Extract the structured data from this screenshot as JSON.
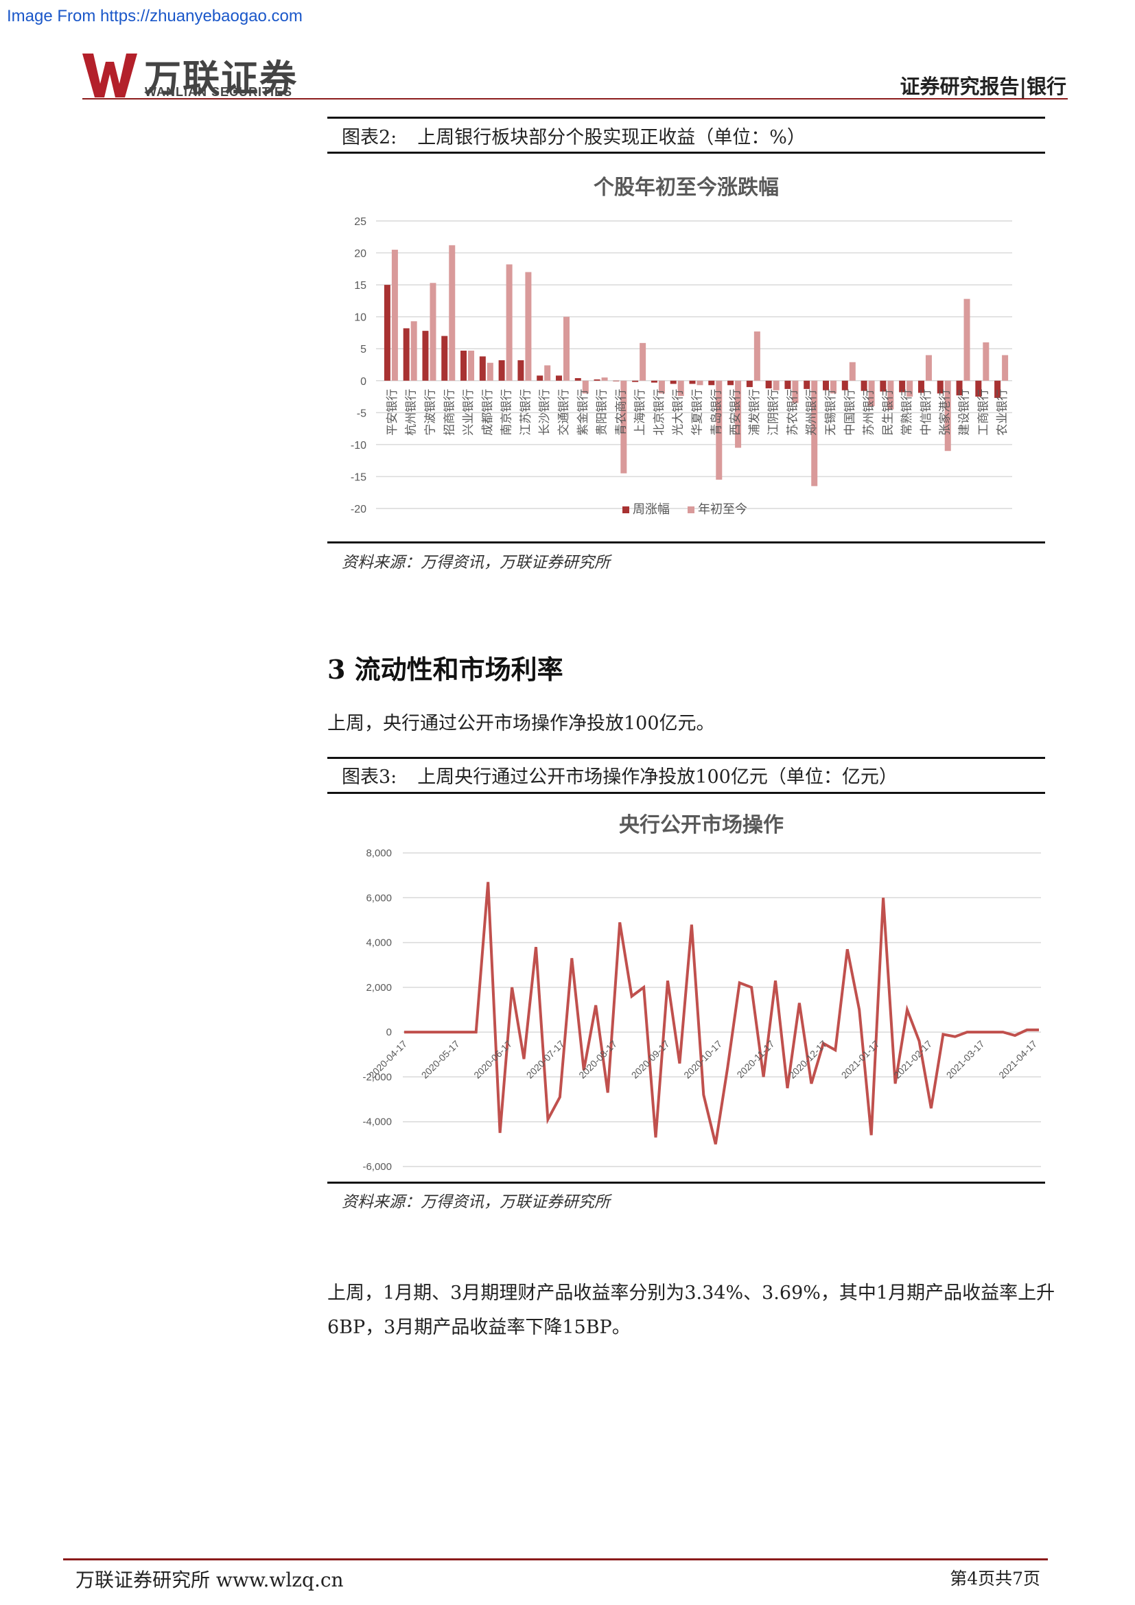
{
  "watermark": "Image From https://zhuanyebaogao.com",
  "header": {
    "logo_cn": "万联证券",
    "logo_en": "WANLIAN SECURITIES",
    "report_type": "证券研究报告|银行"
  },
  "figure2": {
    "num": "图表2:",
    "caption": "上周银行板块部分个股实现正收益（单位：%）",
    "source": "资料来源：万得资讯，万联证券研究所"
  },
  "figure3": {
    "num": "图表3:",
    "caption": "上周央行通过公开市场操作净投放100亿元（单位：亿元）",
    "source": "资料来源：万得资讯，万联证券研究所"
  },
  "section": {
    "title": "3 流动性和市场利率",
    "para1": "上周，央行通过公开市场操作净投放100亿元。",
    "para2": "上周，1月期、3月期理财产品收益率分别为3.34%、3.69%，其中1月期产品收益率上升6BP，3月期产品收益率下降15BP。"
  },
  "footer": {
    "left": "万联证券研究所 www.wlzq.cn",
    "right": "第4页共7页"
  },
  "colors": {
    "dark_red": "#a83232",
    "light_red": "#d99a9a",
    "line_red": "#c0504d",
    "accent": "#8b1a1a"
  },
  "chart_data": [
    {
      "type": "bar",
      "title": "个股年初至今涨跌幅",
      "ylim": [
        -20,
        25
      ],
      "yticks": [
        "25",
        "20",
        "15",
        "10",
        "5",
        "0",
        "-5",
        "-10",
        "-15",
        "-20"
      ],
      "grid": true,
      "legend_position": "bottom",
      "categories": [
        "平安银行",
        "杭州银行",
        "宁波银行",
        "招商银行",
        "兴业银行",
        "成都银行",
        "南京银行",
        "江苏银行",
        "长沙银行",
        "交通银行",
        "紫金银行",
        "贵阳银行",
        "青农商行",
        "上海银行",
        "北京银行",
        "光大银行",
        "华夏银行",
        "青岛银行",
        "西安银行",
        "浦发银行",
        "江阴银行",
        "苏农银行",
        "郑州银行",
        "无锡银行",
        "中国银行",
        "苏州银行",
        "民生银行",
        "常熟银行",
        "中信银行",
        "张家港行",
        "建设银行",
        "工商银行",
        "农业银行"
      ],
      "series": [
        {
          "name": "周涨幅",
          "color": "#a83232",
          "values": [
            15,
            8.2,
            7.8,
            7,
            4.7,
            3.8,
            3.2,
            3.2,
            0.8,
            0.8,
            0.4,
            0.2,
            0,
            -0.2,
            -0.3,
            -0.5,
            -0.5,
            -0.7,
            -0.7,
            -1,
            -1.2,
            -1.3,
            -1.3,
            -1.5,
            -1.5,
            -1.6,
            -1.7,
            -1.8,
            -1.9,
            -2,
            -2.3,
            -2.5,
            -2.7
          ]
        },
        {
          "name": "年初至今",
          "color": "#d99a9a",
          "values": [
            20.5,
            9.3,
            15.3,
            21.2,
            4.7,
            2.8,
            18.2,
            17,
            2.4,
            10,
            -2,
            0.5,
            -14.5,
            5.9,
            -2,
            -2.4,
            -0.7,
            -15.5,
            -10.5,
            7.7,
            -1.5,
            -3.5,
            -16.5,
            -2,
            2.9,
            -4,
            -4.5,
            -2.5,
            4,
            -11,
            12.8,
            6,
            4
          ]
        }
      ]
    },
    {
      "type": "line",
      "title": "央行公开市场操作",
      "ylim": [
        -6000,
        8000
      ],
      "yticks": [
        "8,000",
        "6,000",
        "4,000",
        "2,000",
        "0",
        "-2,000",
        "-4,000",
        "-6,000"
      ],
      "xticks": [
        "2020-04-17",
        "2020-05-17",
        "2020-06-17",
        "2020-07-17",
        "2020-08-17",
        "2020-09-17",
        "2020-10-17",
        "2020-11-17",
        "2020-12-17",
        "2021-01-17",
        "2021-02-17",
        "2021-03-17",
        "2021-04-17"
      ],
      "grid": true,
      "series": [
        {
          "name": "",
          "color": "#c0504d",
          "values": [
            0,
            0,
            0,
            0,
            0,
            0,
            0,
            6700,
            -4500,
            2000,
            -1200,
            3800,
            -3900,
            -2900,
            3300,
            -1700,
            1200,
            -2700,
            4900,
            1600,
            2000,
            -4700,
            2300,
            -1400,
            4800,
            -2800,
            -5000,
            -1600,
            2200,
            2000,
            -2000,
            2300,
            -2500,
            1300,
            -2300,
            -500,
            -800,
            3700,
            1000,
            -4600,
            6000,
            -2300,
            1000,
            -400,
            -3400,
            -100,
            -200,
            0,
            0,
            0,
            0,
            -150,
            100,
            100
          ]
        }
      ]
    }
  ]
}
